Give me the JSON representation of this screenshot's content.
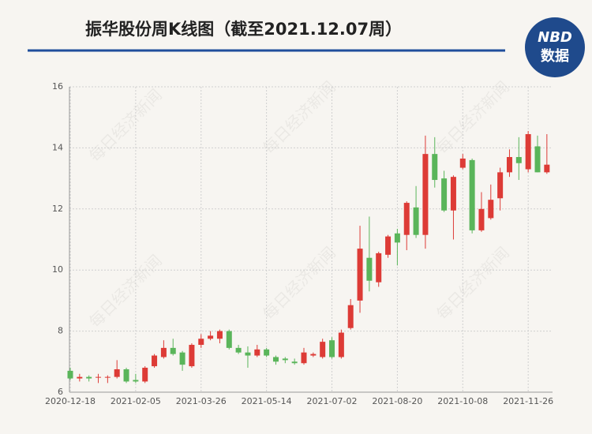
{
  "chart_data": {
    "type": "candlestick",
    "title": "振华股份周K线图（截至2021.12.07周）",
    "watermark": "每日经济新闻",
    "categories": [
      "2020-12-18",
      null,
      null,
      null,
      null,
      null,
      null,
      "2021-02-05",
      null,
      null,
      null,
      null,
      null,
      null,
      "2021-03-26",
      null,
      null,
      null,
      null,
      null,
      null,
      "2021-05-14",
      null,
      null,
      null,
      null,
      null,
      null,
      "2021-07-02",
      null,
      null,
      null,
      null,
      null,
      null,
      "2021-08-20",
      null,
      null,
      null,
      null,
      null,
      null,
      "2021-10-08",
      null,
      null,
      null,
      null,
      null,
      null,
      "2021-11-26",
      null,
      null
    ],
    "open": [
      6.7,
      6.45,
      6.5,
      6.5,
      6.5,
      6.5,
      6.75,
      6.4,
      6.35,
      6.85,
      7.15,
      7.45,
      7.3,
      6.85,
      7.55,
      7.75,
      7.75,
      8.0,
      7.45,
      7.3,
      7.2,
      7.4,
      7.15,
      7.1,
      7.0,
      6.95,
      7.2,
      7.15,
      7.7,
      7.15,
      8.1,
      9.0,
      10.4,
      9.6,
      10.5,
      11.2,
      11.15,
      12.05,
      11.15,
      13.8,
      13.0,
      11.95,
      13.35,
      13.6,
      11.3,
      11.7,
      12.35,
      13.2,
      13.7,
      13.3,
      14.05,
      13.2
    ],
    "high": [
      6.8,
      6.6,
      6.55,
      6.6,
      6.55,
      7.05,
      6.8,
      6.6,
      6.85,
      7.25,
      7.7,
      7.75,
      7.35,
      7.6,
      7.9,
      8.0,
      8.05,
      8.05,
      7.55,
      7.5,
      7.55,
      7.45,
      7.2,
      7.15,
      7.1,
      7.45,
      7.3,
      7.75,
      7.8,
      8.05,
      9.05,
      11.45,
      11.75,
      10.6,
      11.15,
      11.35,
      12.25,
      12.75,
      14.4,
      14.35,
      13.25,
      13.1,
      13.8,
      13.65,
      12.55,
      12.8,
      13.35,
      13.95,
      14.35,
      14.55,
      14.4,
      14.45
    ],
    "low": [
      6.4,
      6.35,
      6.35,
      6.3,
      6.3,
      6.45,
      6.3,
      6.3,
      6.3,
      6.8,
      7.1,
      7.2,
      6.7,
      6.8,
      7.45,
      7.7,
      7.6,
      7.4,
      7.25,
      6.8,
      7.15,
      7.15,
      6.9,
      6.95,
      6.9,
      6.9,
      7.15,
      7.1,
      7.1,
      7.1,
      8.05,
      8.6,
      9.3,
      9.45,
      10.4,
      10.15,
      10.65,
      11.05,
      10.7,
      12.7,
      11.9,
      11.0,
      13.3,
      11.2,
      11.25,
      11.65,
      11.95,
      13.05,
      12.95,
      13.2,
      13.2,
      13.15
    ],
    "close": [
      6.45,
      6.5,
      6.45,
      6.5,
      6.5,
      6.75,
      6.35,
      6.35,
      6.8,
      7.2,
      7.45,
      7.25,
      6.9,
      7.55,
      7.75,
      7.85,
      8.0,
      7.45,
      7.3,
      7.2,
      7.4,
      7.2,
      7.0,
      7.05,
      6.95,
      7.3,
      7.25,
      7.65,
      7.15,
      7.95,
      8.85,
      10.7,
      9.65,
      10.55,
      11.1,
      10.9,
      12.2,
      11.15,
      13.8,
      12.95,
      11.95,
      13.05,
      13.65,
      11.3,
      12.0,
      12.3,
      13.2,
      13.7,
      13.5,
      14.45,
      13.2,
      13.45
    ],
    "up_color": "#dd3b36",
    "down_color": "#5ab55a",
    "ylim": [
      6,
      16
    ],
    "yticks": [
      6,
      8,
      10,
      12,
      14,
      16
    ],
    "grid": true
  },
  "logo": {
    "line1": "NBD",
    "line2": "数据"
  }
}
